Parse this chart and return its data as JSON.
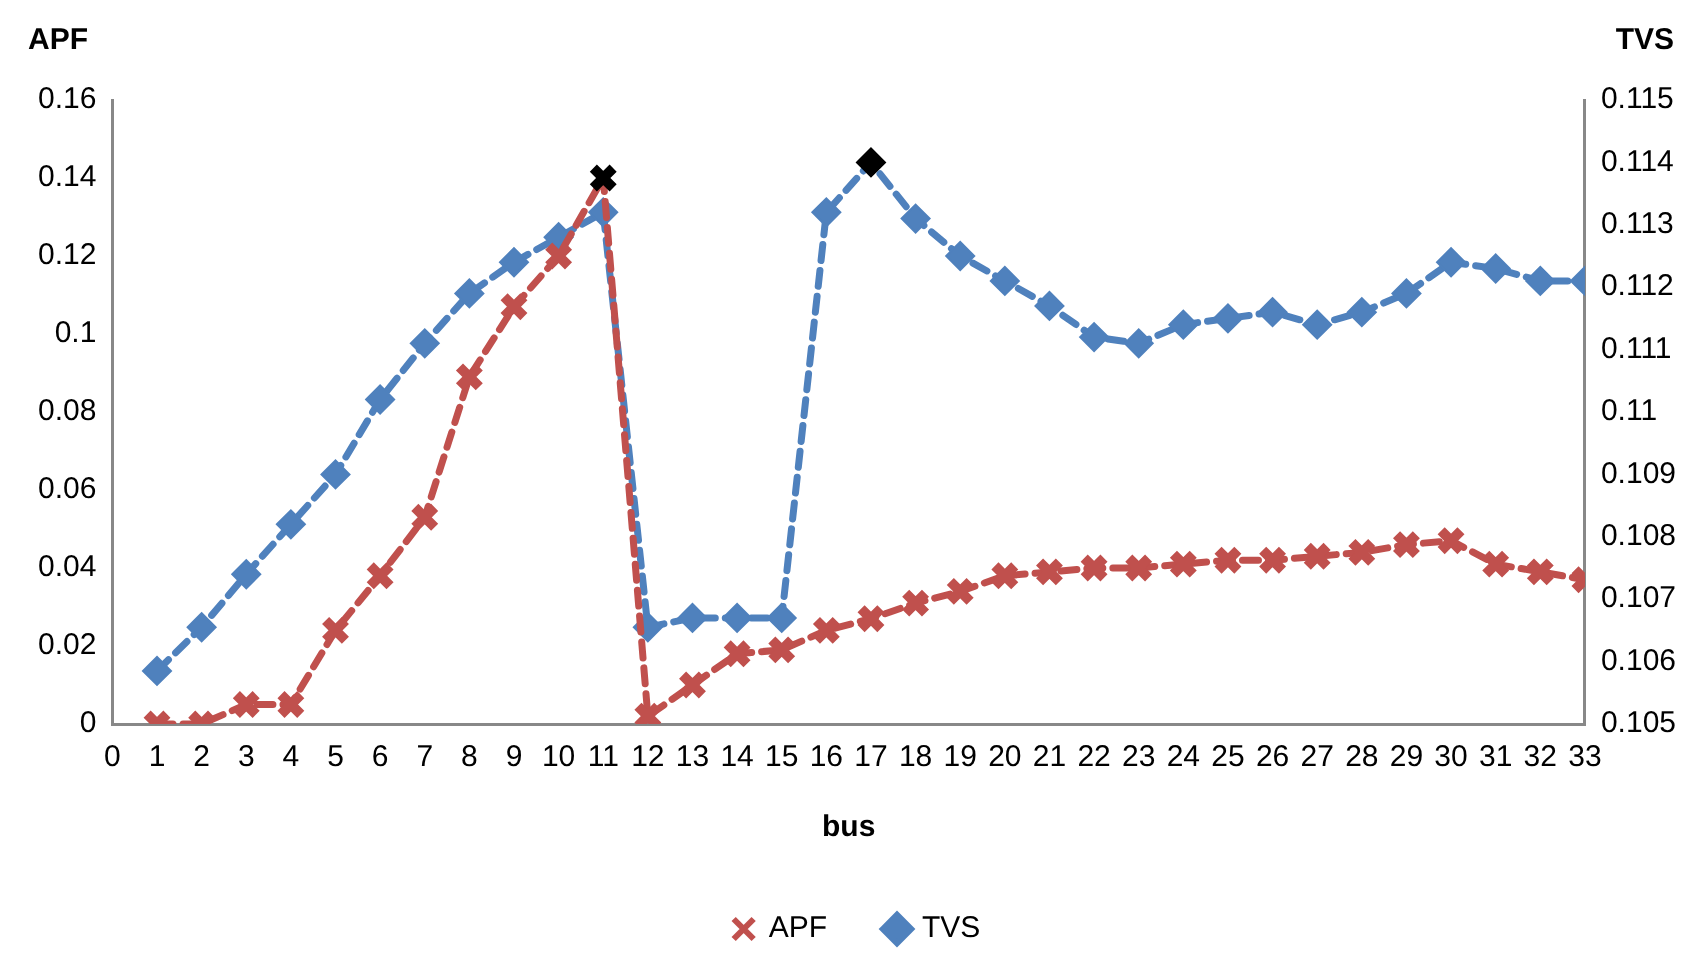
{
  "chart_data": {
    "type": "line",
    "xlabel": "bus",
    "ylabel": "APF",
    "y2label": "TVS",
    "x": [
      1,
      2,
      3,
      4,
      5,
      6,
      7,
      8,
      9,
      10,
      11,
      12,
      13,
      14,
      15,
      16,
      17,
      18,
      19,
      20,
      21,
      22,
      23,
      24,
      25,
      26,
      27,
      28,
      29,
      30,
      31,
      32,
      33
    ],
    "series": [
      {
        "name": "APF",
        "color": "#c0504d",
        "marker": "cross",
        "colors": [
          "#c0504d",
          "#c0504d",
          "#c0504d",
          "#c0504d",
          "#c0504d",
          "#c0504d",
          "#c0504d",
          "#c0504d",
          "#c0504d",
          "#c0504d",
          "#000000",
          "#c0504d",
          "#c0504d",
          "#c0504d",
          "#c0504d",
          "#c0504d",
          "#c0504d",
          "#c0504d",
          "#c0504d",
          "#c0504d",
          "#c0504d",
          "#c0504d",
          "#c0504d",
          "#c0504d",
          "#c0504d",
          "#c0504d",
          "#c0504d",
          "#c0504d",
          "#c0504d",
          "#c0504d",
          "#c0504d",
          "#c0504d",
          "#c0504d"
        ],
        "values": [
          0,
          0,
          0.005,
          0.005,
          0.024,
          0.038,
          0.053,
          0.089,
          0.107,
          0.12,
          0.14,
          0.002,
          0.01,
          0.018,
          0.019,
          0.024,
          0.027,
          0.031,
          0.034,
          0.038,
          0.039,
          0.04,
          0.04,
          0.041,
          0.042,
          0.042,
          0.043,
          0.044,
          0.046,
          0.047,
          0.041,
          0.039,
          0.037
        ]
      },
      {
        "name": "TVS",
        "color": "#4f81bd",
        "marker": "diamond",
        "axis": "y2",
        "colors": [
          "#4f81bd",
          "#4f81bd",
          "#4f81bd",
          "#4f81bd",
          "#4f81bd",
          "#4f81bd",
          "#4f81bd",
          "#4f81bd",
          "#4f81bd",
          "#4f81bd",
          "#4f81bd",
          "#4f81bd",
          "#4f81bd",
          "#4f81bd",
          "#4f81bd",
          "#4f81bd",
          "#000000",
          "#4f81bd",
          "#4f81bd",
          "#4f81bd",
          "#4f81bd",
          "#4f81bd",
          "#4f81bd",
          "#4f81bd",
          "#4f81bd",
          "#4f81bd",
          "#4f81bd",
          "#4f81bd",
          "#4f81bd",
          "#4f81bd",
          "#4f81bd",
          "#4f81bd",
          "#4f81bd"
        ],
        "values": [
          0.10585,
          0.10655,
          0.1074,
          0.1082,
          0.109,
          0.1102,
          0.1111,
          0.1119,
          0.1124,
          0.1128,
          0.1132,
          0.10655,
          0.1067,
          0.1067,
          0.1067,
          0.1132,
          0.114,
          0.1131,
          0.1125,
          0.1121,
          0.1117,
          0.1112,
          0.1111,
          0.1114,
          0.1115,
          0.1116,
          0.1114,
          0.1116,
          0.1119,
          0.1124,
          0.1123,
          0.1121,
          0.1121
        ]
      }
    ],
    "xlim": [
      0,
      33
    ],
    "xticks": [
      0,
      1,
      2,
      3,
      4,
      5,
      6,
      7,
      8,
      9,
      10,
      11,
      12,
      13,
      14,
      15,
      16,
      17,
      18,
      19,
      20,
      21,
      22,
      23,
      24,
      25,
      26,
      27,
      28,
      29,
      30,
      31,
      32,
      33
    ],
    "ylim": [
      0,
      0.16
    ],
    "yticks": [
      0,
      0.02,
      0.04,
      0.06,
      0.08,
      0.1,
      0.12,
      0.14,
      0.16
    ],
    "y2lim": [
      0.105,
      0.115
    ],
    "y2ticks": [
      0.105,
      0.106,
      0.107,
      0.108,
      0.109,
      0.11,
      0.111,
      0.112,
      0.113,
      0.114,
      0.115
    ],
    "grid": false,
    "legend": "bottom",
    "line_style": "dashed"
  }
}
